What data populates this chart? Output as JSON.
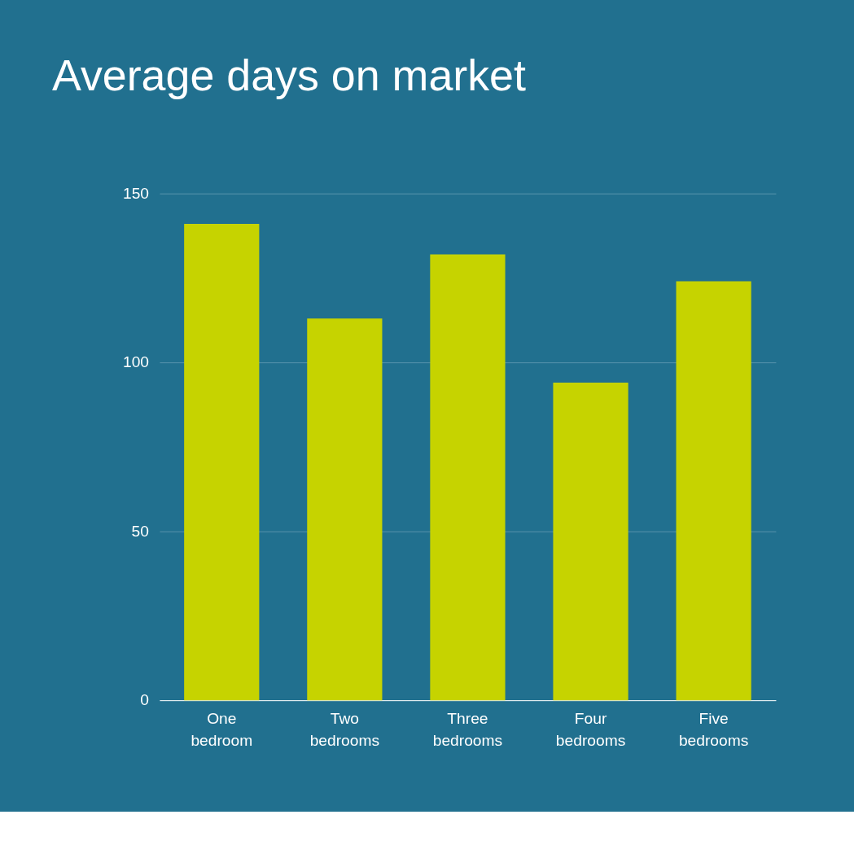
{
  "chart_data": {
    "type": "bar",
    "title": "Average days on market",
    "categories": [
      "One bedroom",
      "Two bedrooms",
      "Three bedrooms",
      "Four bedrooms",
      "Five bedrooms"
    ],
    "values": [
      141,
      113,
      132,
      94,
      124
    ],
    "color": "#c6d300",
    "ylim": [
      0,
      150
    ],
    "yticks": [
      0,
      50,
      100,
      150
    ],
    "grid": "y"
  }
}
